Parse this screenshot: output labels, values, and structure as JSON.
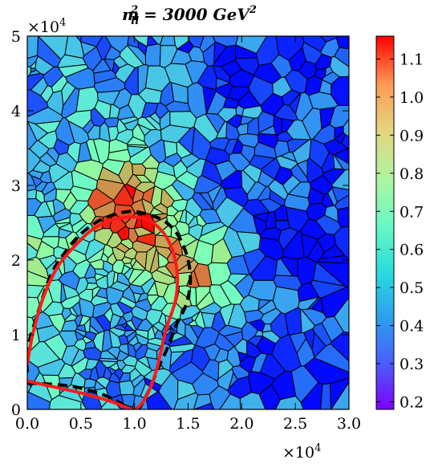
{
  "chart_data": {
    "type": "heatmap",
    "title": "m",
    "title_sub": "ll",
    "title_sup": "2",
    "title_rest": " = 3000 GeV",
    "title_rest_sup": "2",
    "x_multiplier_base": "×10",
    "x_multiplier_exp": "4",
    "y_multiplier_base": "×10",
    "y_multiplier_exp": "4",
    "xlim": [
      0.0,
      3.0
    ],
    "ylim": [
      0,
      5
    ],
    "xticks": [
      "0.0",
      "0.5",
      "1.0",
      "1.5",
      "2.0",
      "2.5",
      "3.0"
    ],
    "yticks": [
      "0",
      "1",
      "2",
      "3",
      "4",
      "5"
    ],
    "colorbar": {
      "min": 0.18,
      "max": 1.16,
      "ticks": [
        "0.2",
        "0.3",
        "0.4",
        "0.5",
        "0.6",
        "0.7",
        "0.8",
        "0.9",
        "1.0",
        "1.1"
      ],
      "colormap": "rainbow"
    },
    "cell_outline_color": "#000000",
    "contours": [
      {
        "style": "dashed",
        "color": "#000000",
        "points": [
          [
            0.0,
            0.5
          ],
          [
            0.0,
            0.8
          ],
          [
            0.1,
            1.3
          ],
          [
            0.22,
            1.8
          ],
          [
            0.35,
            2.1
          ],
          [
            0.5,
            2.35
          ],
          [
            0.7,
            2.55
          ],
          [
            0.95,
            2.65
          ],
          [
            1.15,
            2.6
          ],
          [
            1.3,
            2.5
          ],
          [
            1.42,
            2.3
          ],
          [
            1.5,
            2.0
          ],
          [
            1.52,
            1.7
          ],
          [
            1.48,
            1.4
          ],
          [
            1.38,
            1.1
          ],
          [
            1.3,
            0.8
          ],
          [
            1.22,
            0.55
          ],
          [
            1.15,
            0.3
          ],
          [
            1.08,
            0.1
          ],
          [
            1.04,
            0.0
          ]
        ]
      },
      {
        "style": "dashed",
        "color": "#000000",
        "points": [
          [
            0.0,
            0.35
          ],
          [
            0.2,
            0.34
          ],
          [
            0.45,
            0.3
          ],
          [
            0.7,
            0.2
          ],
          [
            0.85,
            0.1
          ],
          [
            0.95,
            0.0
          ]
        ]
      },
      {
        "style": "solid",
        "color": "#ff1a1a",
        "points": [
          [
            0.0,
            0.6
          ],
          [
            0.05,
            1.0
          ],
          [
            0.15,
            1.5
          ],
          [
            0.28,
            1.9
          ],
          [
            0.45,
            2.2
          ],
          [
            0.65,
            2.45
          ],
          [
            0.9,
            2.57
          ],
          [
            1.1,
            2.55
          ],
          [
            1.25,
            2.4
          ],
          [
            1.35,
            2.15
          ],
          [
            1.4,
            1.8
          ],
          [
            1.38,
            1.45
          ],
          [
            1.3,
            1.1
          ],
          [
            1.25,
            0.8
          ],
          [
            1.2,
            0.5
          ],
          [
            1.12,
            0.2
          ],
          [
            1.05,
            0.05
          ],
          [
            1.0,
            0.0
          ]
        ]
      },
      {
        "style": "solid",
        "color": "#ff1a1a",
        "points": [
          [
            0.0,
            0.38
          ],
          [
            0.25,
            0.3
          ],
          [
            0.5,
            0.22
          ],
          [
            0.75,
            0.12
          ],
          [
            0.9,
            0.04
          ],
          [
            0.97,
            0.0
          ]
        ]
      }
    ],
    "field": {
      "base": 0.42,
      "gradient_x": -0.05,
      "hotspots": [
        {
          "x": 0.85,
          "y": 2.7,
          "amp": 0.5,
          "r": 0.3
        },
        {
          "x": 1.05,
          "y": 2.65,
          "amp": 0.35,
          "r": 0.3
        },
        {
          "x": 1.45,
          "y": 1.9,
          "amp": 0.4,
          "r": 0.25
        },
        {
          "x": 0.05,
          "y": 1.9,
          "amp": 0.35,
          "r": 0.2
        },
        {
          "x": 1.7,
          "y": 1.8,
          "amp": 0.25,
          "r": 0.25
        },
        {
          "x": 0.15,
          "y": 0.8,
          "amp": 0.2,
          "r": 0.25
        }
      ],
      "coldspots": [
        {
          "x": 1.8,
          "y": 4.6,
          "amp": 0.18,
          "r": 0.2
        },
        {
          "x": 2.4,
          "y": 2.3,
          "amp": 0.15,
          "r": 0.25
        },
        {
          "x": 2.85,
          "y": 1.9,
          "amp": 0.15,
          "r": 0.2
        }
      ]
    }
  }
}
